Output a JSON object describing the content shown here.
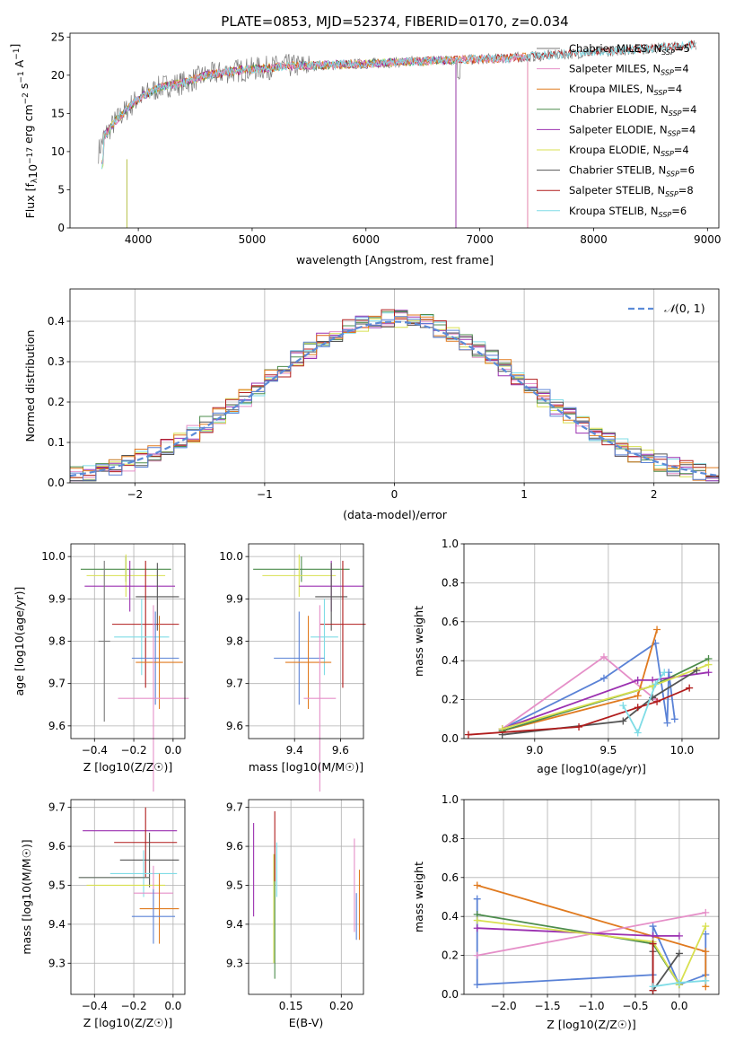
{
  "title": "PLATE=0853, MJD=52374, FIBERID=0170, z=0.034",
  "colors": {
    "Chabrier MILES": "#7a7a7a",
    "Salpeter MILES": "#e58fc8",
    "Kroupa MILES": "#e07a1f",
    "Chabrier ELODIE": "#4c8c4c",
    "Salpeter ELODIE": "#9b30b0",
    "Kroupa ELODIE": "#d8e050",
    "Chabrier STELIB": "#555555",
    "Salpeter STELIB": "#b01c1c",
    "Kroupa STELIB": "#7fdce6",
    "blue": "#5a82d6"
  },
  "chart_data": [
    {
      "type": "line",
      "title": "PLATE=0853, MJD=52374, FIBERID=0170, z=0.034",
      "xlabel": "wavelength [Angstrom, rest frame]",
      "ylabel": "Flux [f_λ 10^-17 erg cm^-2 s^-1 A^-1]",
      "xlim": [
        3400,
        9100
      ],
      "ylim": [
        0,
        25.5
      ],
      "xticks": [
        4000,
        5000,
        6000,
        7000,
        8000,
        9000
      ],
      "yticks": [
        0,
        5,
        10,
        15,
        20,
        25
      ],
      "legend_position": "right",
      "legend": [
        {
          "name": "Chabrier MILES",
          "nssp": "5"
        },
        {
          "name": "Salpeter MILES",
          "nssp": "4"
        },
        {
          "name": "Kroupa MILES",
          "nssp": "4"
        },
        {
          "name": "Chabrier ELODIE",
          "nssp": "4"
        },
        {
          "name": "Salpeter ELODIE",
          "nssp": "4"
        },
        {
          "name": "Kroupa ELODIE",
          "nssp": "4"
        },
        {
          "name": "Chabrier STELIB",
          "nssp": "6"
        },
        {
          "name": "Salpeter STELIB",
          "nssp": "8"
        },
        {
          "name": "Kroupa STELIB",
          "nssp": "6"
        }
      ],
      "continuum": {
        "x": [
          3650,
          3700,
          3800,
          3900,
          4000,
          4200,
          4400,
          4600,
          4800,
          5000,
          5300,
          5600,
          6000,
          6400,
          6800,
          7200,
          7500,
          8000,
          8500,
          8900
        ],
        "y": [
          10,
          12,
          14,
          15.5,
          17,
          18.5,
          19,
          20,
          20.5,
          20.8,
          21.2,
          21.3,
          21.5,
          21.8,
          22,
          22.2,
          22.5,
          23,
          23.5,
          24
        ]
      }
    },
    {
      "type": "bar",
      "xlabel": "(data-model)/error",
      "ylabel": "Normed distribution",
      "xlim": [
        -2.5,
        2.5
      ],
      "ylim": [
        0,
        0.48
      ],
      "xticks": [
        -2,
        -1,
        0,
        1,
        2
      ],
      "yticks": [
        0.0,
        0.1,
        0.2,
        0.3,
        0.4
      ],
      "legend_label": "N(0,1)",
      "legend_position": "top-right",
      "gaussian": {
        "mu": 0,
        "sigma": 1
      }
    },
    {
      "type": "scatter",
      "xlabel": "Z [log10(Z/Z☉)]",
      "ylabel": "age  [log10(age/yr)]",
      "xlim": [
        -0.52,
        0.06
      ],
      "ylim": [
        9.57,
        10.03
      ],
      "xticks": [
        -0.4,
        -0.2,
        0.0
      ],
      "yticks": [
        9.6,
        9.7,
        9.8,
        9.9,
        10.0
      ],
      "errorbars": [
        {
          "series": "Chabrier ELODIE",
          "x": -0.24,
          "xerr": 0.23,
          "y": 9.97,
          "yerr": 0.03
        },
        {
          "series": "Kroupa ELODIE",
          "x": -0.24,
          "xerr": 0.2,
          "y": 9.955,
          "yerr": 0.05
        },
        {
          "series": "Salpeter ELODIE",
          "x": -0.22,
          "xerr": 0.23,
          "y": 9.93,
          "yerr": 0.06
        },
        {
          "series": "Chabrier STELIB",
          "x": -0.08,
          "xerr": 0.11,
          "y": 9.905,
          "yerr": 0.08
        },
        {
          "series": "Chabrier MILES",
          "x": -0.35,
          "xerr": 0.03,
          "y": 9.8,
          "yerr": 0.19
        },
        {
          "series": "Salpeter STELIB",
          "x": -0.14,
          "xerr": 0.17,
          "y": 9.84,
          "yerr": 0.15
        },
        {
          "series": "Kroupa STELIB",
          "x": -0.16,
          "xerr": 0.14,
          "y": 9.81,
          "yerr": 0.09
        },
        {
          "series": "blue",
          "x": -0.09,
          "xerr": 0.12,
          "y": 9.76,
          "yerr": 0.11
        },
        {
          "series": "Kroupa MILES",
          "x": -0.07,
          "xerr": 0.12,
          "y": 9.75,
          "yerr": 0.11
        },
        {
          "series": "Salpeter MILES",
          "x": -0.1,
          "xerr": 0.18,
          "y": 9.665,
          "yerr": 0.22
        }
      ]
    },
    {
      "type": "scatter",
      "xlabel": "mass [log10(M/M☉)]",
      "ylabel": "",
      "xlim": [
        9.2,
        9.7
      ],
      "ylim": [
        9.57,
        10.03
      ],
      "xticks": [
        9.4,
        9.6
      ],
      "yticks": [
        9.6,
        9.7,
        9.8,
        9.9,
        10.0
      ],
      "errorbars": [
        {
          "series": "Chabrier ELODIE",
          "x": 9.43,
          "xerr": 0.21,
          "y": 9.97,
          "yerr": 0.03
        },
        {
          "series": "Kroupa ELODIE",
          "x": 9.42,
          "xerr": 0.16,
          "y": 9.955,
          "yerr": 0.05
        },
        {
          "series": "Salpeter ELODIE",
          "x": 9.56,
          "xerr": 0.14,
          "y": 9.93,
          "yerr": 0.06
        },
        {
          "series": "Chabrier STELIB",
          "x": 9.56,
          "xerr": 0.07,
          "y": 9.905,
          "yerr": 0.08
        },
        {
          "series": "Salpeter STELIB",
          "x": 9.61,
          "xerr": 0.1,
          "y": 9.84,
          "yerr": 0.15
        },
        {
          "series": "Kroupa STELIB",
          "x": 9.53,
          "xerr": 0.06,
          "y": 9.81,
          "yerr": 0.09
        },
        {
          "series": "blue",
          "x": 9.42,
          "xerr": 0.11,
          "y": 9.76,
          "yerr": 0.11
        },
        {
          "series": "Kroupa MILES",
          "x": 9.46,
          "xerr": 0.1,
          "y": 9.75,
          "yerr": 0.11
        },
        {
          "series": "Salpeter MILES",
          "x": 9.51,
          "xerr": 0.07,
          "y": 9.665,
          "yerr": 0.22
        }
      ]
    },
    {
      "type": "line",
      "xlabel": "age  [log10(age/yr)]",
      "ylabel": "mass weight",
      "xlim": [
        8.52,
        10.25
      ],
      "ylim": [
        0.0,
        1.0
      ],
      "xticks": [
        9.0,
        9.5,
        10.0
      ],
      "yticks": [
        0.0,
        0.2,
        0.4,
        0.6,
        0.8,
        1.0
      ],
      "series": [
        {
          "name": "blue",
          "x": [
            8.78,
            9.47,
            9.82,
            9.9,
            9.91,
            9.95
          ],
          "y": [
            0.05,
            0.31,
            0.49,
            0.08,
            0.34,
            0.1
          ]
        },
        {
          "name": "Salpeter MILES",
          "x": [
            8.78,
            9.47,
            9.82
          ],
          "y": [
            0.05,
            0.42,
            0.2
          ]
        },
        {
          "name": "Kroupa MILES",
          "x": [
            8.78,
            9.7,
            9.83
          ],
          "y": [
            0.04,
            0.22,
            0.56
          ]
        },
        {
          "name": "Chabrier ELODIE",
          "x": [
            8.78,
            9.8,
            10.18
          ],
          "y": [
            0.04,
            0.27,
            0.41
          ]
        },
        {
          "name": "Salpeter ELODIE",
          "x": [
            8.78,
            9.7,
            9.8,
            10.18
          ],
          "y": [
            0.05,
            0.3,
            0.3,
            0.34
          ]
        },
        {
          "name": "Kroupa ELODIE",
          "x": [
            8.78,
            9.8,
            10.18
          ],
          "y": [
            0.05,
            0.27,
            0.38
          ]
        },
        {
          "name": "Chabrier STELIB",
          "x": [
            8.78,
            9.6,
            9.8,
            10.1
          ],
          "y": [
            0.02,
            0.09,
            0.21,
            0.35
          ]
        },
        {
          "name": "Salpeter STELIB",
          "x": [
            8.55,
            9.3,
            9.7,
            9.83,
            10.05
          ],
          "y": [
            0.02,
            0.06,
            0.16,
            0.19,
            0.26
          ]
        },
        {
          "name": "Kroupa STELIB",
          "x": [
            9.6,
            9.7,
            9.82,
            9.88
          ],
          "y": [
            0.17,
            0.03,
            0.28,
            0.34
          ]
        }
      ]
    },
    {
      "type": "scatter",
      "xlabel": "Z [log10(Z/Z☉)]",
      "ylabel": "mass [log10(M/M☉)]",
      "xlim": [
        -0.52,
        0.06
      ],
      "ylim": [
        9.22,
        9.72
      ],
      "xticks": [
        -0.4,
        -0.2,
        0.0
      ],
      "yticks": [
        9.3,
        9.4,
        9.5,
        9.6,
        9.7
      ],
      "errorbars": [
        {
          "series": "Salpeter ELODIE",
          "x": -0.22,
          "xerr": 0.24,
          "y": 9.64,
          "yerr": 0.0
        },
        {
          "series": "Salpeter STELIB",
          "x": -0.14,
          "xerr": 0.16,
          "y": 9.61,
          "yerr": 0.09
        },
        {
          "series": "Chabrier STELIB",
          "x": -0.12,
          "xerr": 0.15,
          "y": 9.565,
          "yerr": 0.07
        },
        {
          "series": "Kroupa STELIB",
          "x": -0.15,
          "xerr": 0.17,
          "y": 9.53,
          "yerr": 0.06
        },
        {
          "series": "Chabrier ELODIE",
          "x": -0.3,
          "xerr": 0.18,
          "y": 9.52,
          "yerr": 0.0
        },
        {
          "series": "Chabrier MILES",
          "x": -0.3,
          "xerr": 0.18,
          "y": 9.52,
          "yerr": 0.0
        },
        {
          "series": "Kroupa ELODIE",
          "x": -0.24,
          "xerr": 0.2,
          "y": 9.5,
          "yerr": 0.0
        },
        {
          "series": "Salpeter MILES",
          "x": -0.1,
          "xerr": 0.1,
          "y": 9.48,
          "yerr": 0.07
        },
        {
          "series": "Kroupa MILES",
          "x": -0.07,
          "xerr": 0.1,
          "y": 9.44,
          "yerr": 0.09
        },
        {
          "series": "blue",
          "x": -0.1,
          "xerr": 0.11,
          "y": 9.42,
          "yerr": 0.07
        }
      ]
    },
    {
      "type": "scatter",
      "xlabel": "E(B-V)",
      "ylabel": "",
      "xlim": [
        0.108,
        0.222
      ],
      "ylim": [
        9.22,
        9.72
      ],
      "xticks": [
        0.15,
        0.2
      ],
      "yticks": [
        9.3,
        9.4,
        9.5,
        9.6,
        9.7
      ],
      "errorbars": [
        {
          "series": "Salpeter ELODIE",
          "x": 0.113,
          "y": 9.54,
          "yerr": 0.12
        },
        {
          "series": "Kroupa ELODIE",
          "x": 0.133,
          "y": 9.44,
          "yerr": 0.14
        },
        {
          "series": "Chabrier ELODIE",
          "x": 0.134,
          "y": 9.42,
          "yerr": 0.16
        },
        {
          "series": "Salpeter STELIB",
          "x": 0.134,
          "y": 9.6,
          "yerr": 0.09
        },
        {
          "series": "Kroupa STELIB",
          "x": 0.136,
          "y": 9.54,
          "yerr": 0.07
        },
        {
          "series": "Salpeter MILES",
          "x": 0.213,
          "y": 9.5,
          "yerr": 0.12
        },
        {
          "series": "blue",
          "x": 0.215,
          "y": 9.42,
          "yerr": 0.06
        },
        {
          "series": "Kroupa MILES",
          "x": 0.218,
          "y": 9.45,
          "yerr": 0.09
        }
      ]
    },
    {
      "type": "line",
      "xlabel": "Z [log10(Z/Z☉)]",
      "ylabel": "mass weight",
      "xlim": [
        -2.45,
        0.45
      ],
      "ylim": [
        0.0,
        1.0
      ],
      "xticks": [
        -2.0,
        -1.5,
        -1.0,
        -0.5,
        0.0
      ],
      "yticks": [
        0.0,
        0.2,
        0.4,
        0.6,
        0.8,
        1.0
      ],
      "series": [
        {
          "name": "blue",
          "x": [
            -2.3,
            -2.3,
            -0.3,
            -0.3,
            0.0,
            0.3,
            0.3
          ],
          "y": [
            0.49,
            0.05,
            0.1,
            0.35,
            0.05,
            0.1,
            0.31
          ]
        },
        {
          "name": "Kroupa MILES",
          "x": [
            -2.3,
            0.3,
            0.3
          ],
          "y": [
            0.56,
            0.22,
            0.04
          ]
        },
        {
          "name": "Salpeter MILES",
          "x": [
            -2.3,
            0.3
          ],
          "y": [
            0.2,
            0.42
          ]
        },
        {
          "name": "Chabrier ELODIE",
          "x": [
            -2.3,
            -0.3,
            0.0
          ],
          "y": [
            0.41,
            0.26,
            0.05
          ]
        },
        {
          "name": "Salpeter ELODIE",
          "x": [
            -2.3,
            -0.3,
            0.0
          ],
          "y": [
            0.34,
            0.3,
            0.3
          ]
        },
        {
          "name": "Kroupa ELODIE",
          "x": [
            -2.3,
            -0.3,
            0.0,
            0.3
          ],
          "y": [
            0.38,
            0.27,
            0.05,
            0.35
          ]
        },
        {
          "name": "Chabrier STELIB",
          "x": [
            -0.3,
            -0.3,
            0.0
          ],
          "y": [
            0.22,
            0.02,
            0.21
          ]
        },
        {
          "name": "Salpeter STELIB",
          "x": [
            -0.3,
            -0.3
          ],
          "y": [
            0.26,
            0.02
          ]
        },
        {
          "name": "Kroupa STELIB",
          "x": [
            -0.3,
            0.0,
            0.3
          ],
          "y": [
            0.04,
            0.06,
            0.07
          ]
        }
      ]
    }
  ]
}
